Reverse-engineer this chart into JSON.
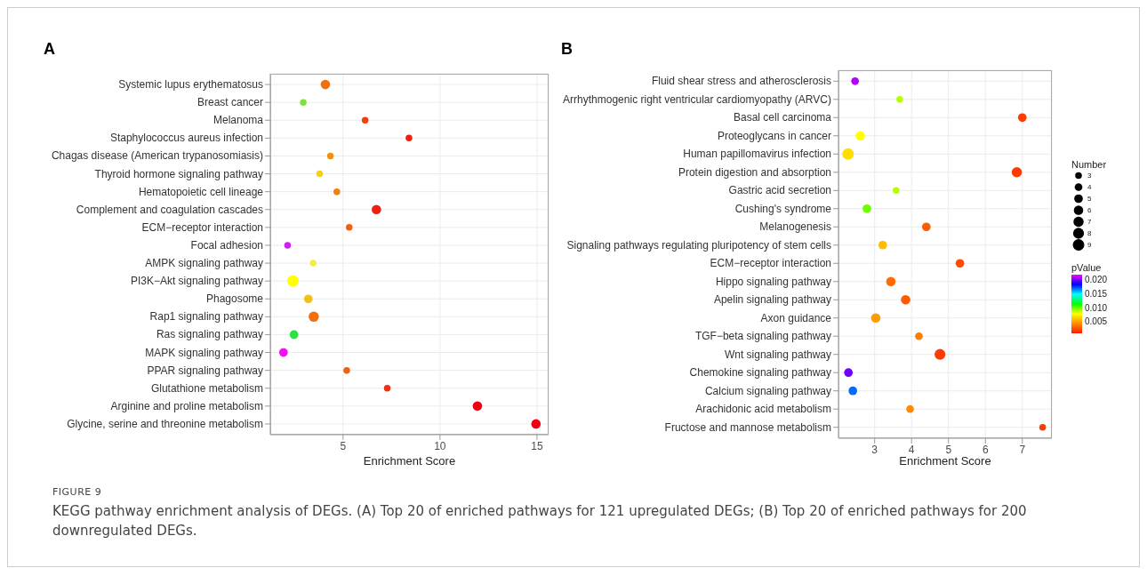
{
  "chart_data": [
    {
      "type": "bubble",
      "title": "A",
      "orientation": "horizontal",
      "xlabel": "Enrichment Score",
      "xlim": [
        1.25,
        15.6
      ],
      "xticks": [
        5,
        10,
        15
      ],
      "grid": true,
      "categories": [
        "Systemic lupus erythematosus",
        "Breast cancer",
        "Melanoma",
        "Staphylococcus aureus infection",
        "Chagas disease (American trypanosomiasis)",
        "Thyroid hormone signaling pathway",
        "Hematopoietic cell lineage",
        "Complement and coagulation cascades",
        "ECM−receptor interaction",
        "Focal adhesion",
        "AMPK signaling pathway",
        "PI3K−Akt signaling pathway",
        "Phagosome",
        "Rap1 signaling pathway",
        "Ras signaling pathway",
        "MAPK signaling pathway",
        "PPAR signaling pathway",
        "Glutathione metabolism",
        "Arginine and proline metabolism",
        "Glycine, serine and threonine metabolism"
      ],
      "values": [
        4.09,
        2.95,
        6.14,
        8.4,
        4.35,
        3.79,
        4.68,
        6.72,
        5.32,
        2.14,
        3.46,
        2.42,
        3.21,
        3.49,
        2.47,
        1.93,
        5.19,
        7.28,
        11.93,
        14.95
      ],
      "sizes": [
        0.67,
        0.33,
        0.33,
        0.33,
        0.33,
        0.33,
        0.33,
        0.67,
        0.33,
        0.33,
        0.33,
        1,
        0.56,
        0.78,
        0.56,
        0.56,
        0.33,
        0.33,
        0.67,
        0.67
      ],
      "colors": [
        "#f07010",
        "#80e040",
        "#f04010",
        "#f02010",
        "#f09010",
        "#f0d020",
        "#f08010",
        "#f02010",
        "#f06010",
        "#d020f0",
        "#f0f040",
        "#ffff00",
        "#f0c020",
        "#f07010",
        "#30e040",
        "#f010f0",
        "#f06010",
        "#f03010",
        "#f00010",
        "#f00010"
      ],
      "annotations": [
        "FIGURE 9",
        "KEGG pathway enrichment analysis of DEGs. (A) Top 20 of enriched pathways for 121 upregulated DEGs; (B) Top 20 of enriched pathways for 200 downregulated DEGs."
      ]
    },
    {
      "type": "bubble",
      "title": "B",
      "orientation": "horizontal",
      "xlabel": "Enrichment Score",
      "xlim": [
        2.02,
        7.8
      ],
      "xticks": [
        3,
        4,
        5,
        6,
        7
      ],
      "grid": true,
      "legend_title": "Number",
      "size_legend": [
        3,
        4,
        5,
        6,
        7,
        8,
        9
      ],
      "clabel": "pValue",
      "clim": [
        0.001,
        0.022
      ],
      "cticks": [
        {
          "value": 0.005,
          "label": "0.005"
        },
        {
          "value": 0.01,
          "label": "0.010"
        },
        {
          "value": 0.015,
          "label": "0.015"
        },
        {
          "value": 0.02,
          "label": "0.020"
        }
      ],
      "categories": [
        "Fluid shear stress and atherosclerosis",
        "Arrhythmogenic right ventricular cardiomyopathy (ARVC)",
        "Basal cell carcinoma",
        "Proteoglycans in cancer",
        "Human papillomavirus infection",
        "Protein digestion and absorption",
        "Gastric acid secretion",
        "Cushing's syndrome",
        "Melanogenesis",
        "Signaling pathways regulating pluripotency of stem cells",
        "ECM−receptor interaction",
        "Hippo signaling pathway",
        "Apelin signaling pathway",
        "Axon guidance",
        "TGF−beta signaling pathway",
        "Wnt signaling pathway",
        "Chemokine signaling pathway",
        "Calcium signaling pathway",
        "Arachidonic acid metabolism",
        "Fructose and mannose metabolism"
      ],
      "values": [
        2.47,
        3.68,
        7.0,
        2.61,
        2.28,
        6.85,
        3.58,
        2.79,
        4.4,
        3.22,
        5.31,
        3.44,
        3.84,
        3.03,
        4.2,
        4.77,
        2.29,
        2.41,
        3.96,
        7.55
      ],
      "sizes": [
        4,
        3,
        5,
        6,
        9,
        7,
        3,
        5,
        5,
        5,
        5,
        6,
        6,
        6,
        4,
        8,
        5,
        5,
        4,
        3
      ],
      "cvalues": [
        0.021,
        0.009,
        0.002,
        0.008,
        0.007,
        0.002,
        0.009,
        0.01,
        0.003,
        0.006,
        0.0025,
        0.0035,
        0.003,
        0.005,
        0.004,
        0.002,
        0.02,
        0.017,
        0.0045,
        0.002
      ]
    }
  ]
}
